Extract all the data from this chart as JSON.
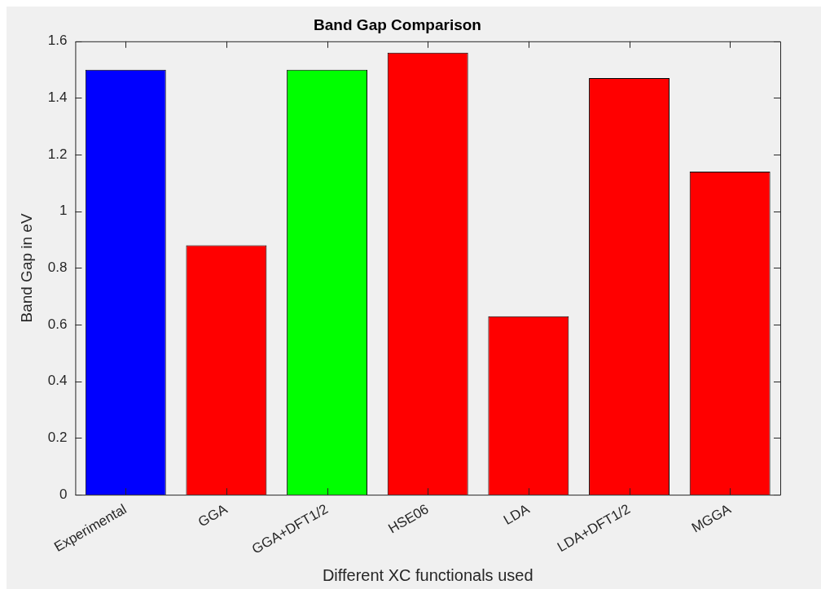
{
  "chart_data": {
    "type": "bar",
    "title": "Band Gap Comparison",
    "xlabel": "Different XC functionals used",
    "ylabel": "Band Gap in eV",
    "categories": [
      "Experimental",
      "GGA",
      "GGA+DFT1/2",
      "HSE06",
      "LDA",
      "LDA+DFT1/2",
      "MGGA"
    ],
    "values": [
      1.5,
      0.88,
      1.5,
      1.56,
      0.63,
      1.47,
      1.14
    ],
    "colors": [
      "#0000ff",
      "#ff0000",
      "#00ff00",
      "#ff0000",
      "#ff0000",
      "#ff0000",
      "#ff0000"
    ],
    "ylim": [
      0,
      1.6
    ],
    "yticks": [
      0,
      0.2,
      0.4,
      0.6,
      0.8,
      1,
      1.2,
      1.4,
      1.6
    ],
    "grid": false,
    "legend": false
  }
}
